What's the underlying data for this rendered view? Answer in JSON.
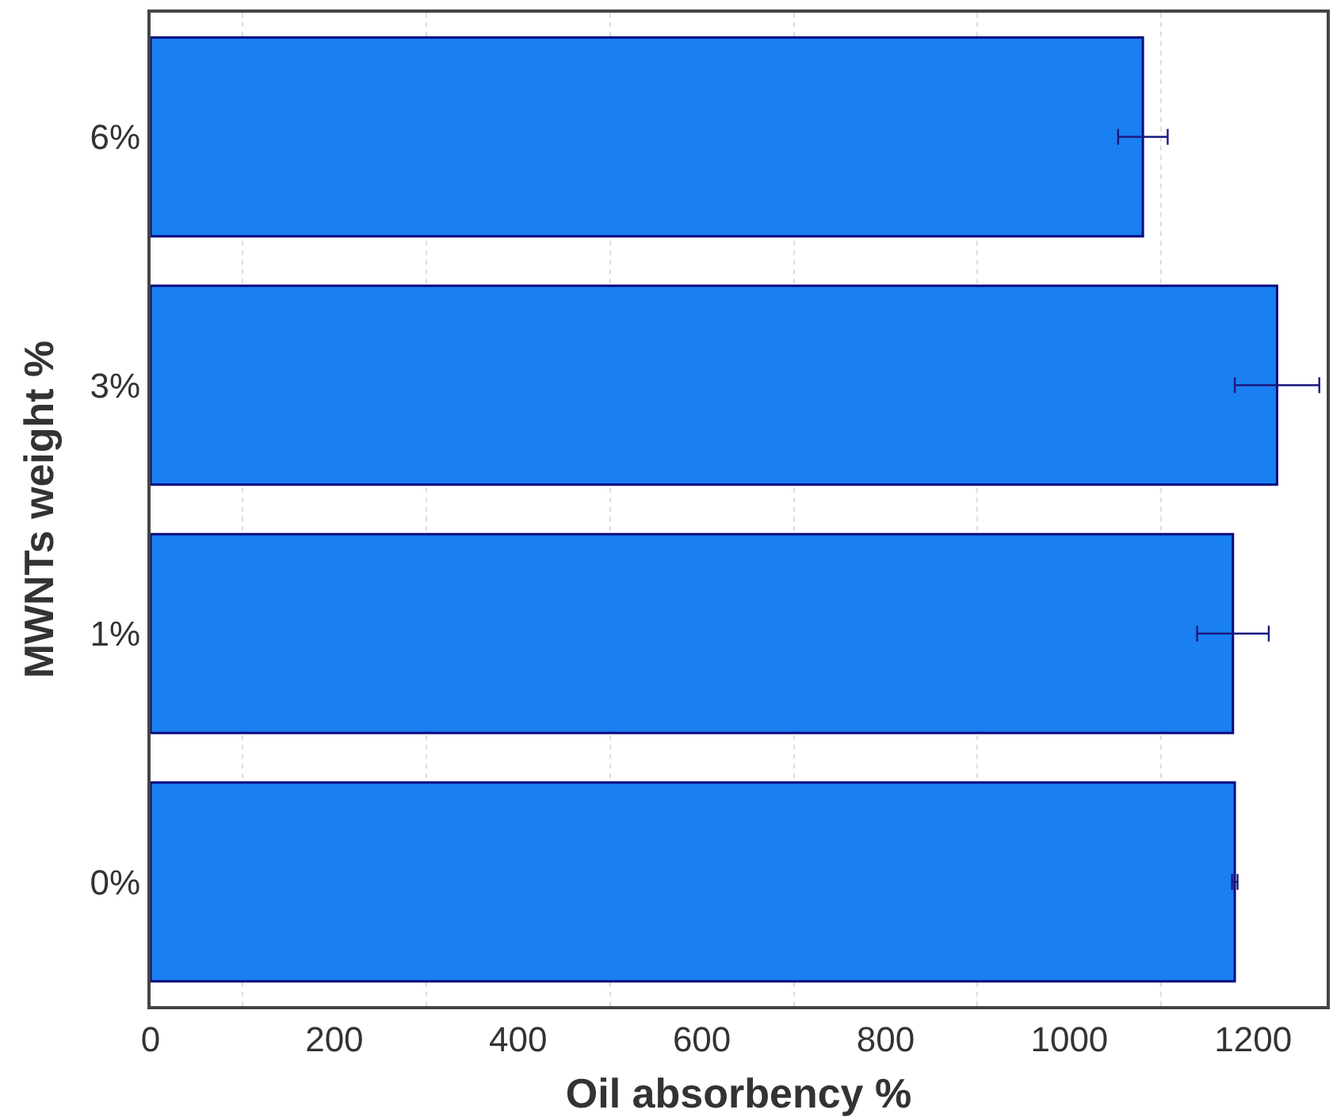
{
  "chart_data": {
    "type": "bar",
    "orientation": "horizontal",
    "xlabel": "Oil absorbency %",
    "ylabel": "MWNTs weight %",
    "categories": [
      "6%",
      "3%",
      "1%",
      "0%"
    ],
    "series": [
      {
        "color": "#1a7ff0",
        "values": [
          1080,
          1226,
          1178,
          1180
        ],
        "errors": [
          27,
          46,
          39,
          3
        ]
      }
    ],
    "xlim": [
      0,
      1280
    ],
    "xticks": [
      0,
      200,
      400,
      600,
      800,
      1000,
      1200
    ],
    "grid": "x"
  }
}
